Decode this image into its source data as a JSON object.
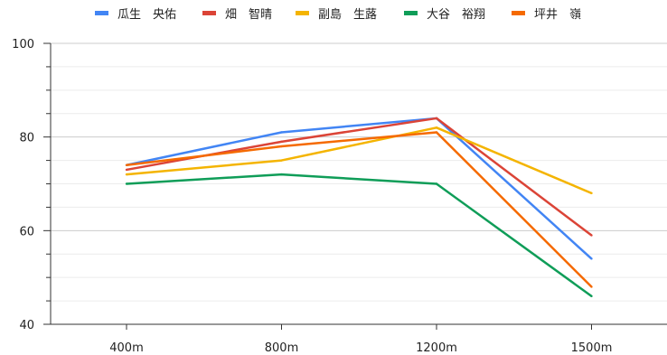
{
  "chart_data": {
    "type": "line",
    "title": "",
    "xlabel": "",
    "ylabel": "",
    "categories": [
      "400m",
      "800m",
      "1200m",
      "1500m"
    ],
    "ylim": [
      40,
      100
    ],
    "yticks": [
      40,
      60,
      80,
      100
    ],
    "grid": true,
    "legend_position": "top",
    "series": [
      {
        "name": "瓜生　央佑",
        "color": "#4285F4",
        "values": [
          74,
          81,
          84,
          54
        ]
      },
      {
        "name": "畑　智晴",
        "color": "#DB4437",
        "values": [
          73,
          79,
          84,
          59
        ]
      },
      {
        "name": "副島　生蕗",
        "color": "#F4B400",
        "values": [
          72,
          75,
          82,
          68
        ]
      },
      {
        "name": "大谷　裕翔",
        "color": "#0F9D58",
        "values": [
          70,
          72,
          70,
          46
        ]
      },
      {
        "name": "坪井　嶺",
        "color": "#F56A00",
        "values": [
          74,
          78,
          81,
          48
        ]
      }
    ]
  }
}
